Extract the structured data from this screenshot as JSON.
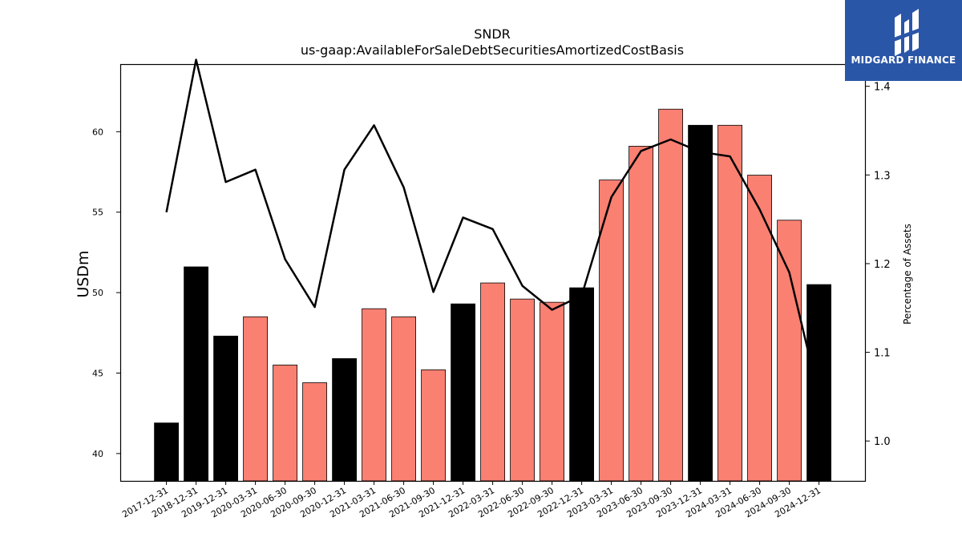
{
  "chart_data": {
    "type": "bar",
    "title": "SNDR",
    "subtitle": "us-gaap:AvailableForSaleDebtSecuritiesAmortizedCostBasis",
    "ylabel": "USDm",
    "y2label": "Percentage of Assets",
    "ylim": [
      38.3,
      64.2
    ],
    "y2lim": [
      0.955,
      1.425
    ],
    "yticks": [
      40,
      45,
      50,
      55,
      60
    ],
    "y2ticks": [
      1.0,
      1.1,
      1.2,
      1.3,
      1.4
    ],
    "grid": false,
    "categories": [
      "2017-12-31",
      "2018-12-31",
      "2019-12-31",
      "2020-03-31",
      "2020-06-30",
      "2020-09-30",
      "2020-12-31",
      "2021-03-31",
      "2021-06-30",
      "2021-09-30",
      "2021-12-31",
      "2022-03-31",
      "2022-06-30",
      "2022-09-30",
      "2022-12-31",
      "2023-03-31",
      "2023-06-30",
      "2023-09-30",
      "2023-12-31",
      "2024-03-31",
      "2024-06-30",
      "2024-09-30",
      "2024-12-31"
    ],
    "series": [
      {
        "type": "bar",
        "values": [
          41.9,
          51.6,
          47.3,
          48.5,
          45.5,
          44.4,
          45.9,
          49.0,
          48.5,
          45.2,
          49.3,
          50.6,
          49.6,
          49.4,
          50.3,
          57.0,
          59.1,
          61.4,
          60.4,
          60.4,
          57.3,
          54.5,
          50.5
        ],
        "bar_colors": [
          "#000000",
          "#000000",
          "#000000",
          "#fa8072",
          "#fa8072",
          "#fa8072",
          "#000000",
          "#fa8072",
          "#fa8072",
          "#fa8072",
          "#000000",
          "#fa8072",
          "#fa8072",
          "#fa8072",
          "#000000",
          "#fa8072",
          "#fa8072",
          "#fa8072",
          "#000000",
          "#fa8072",
          "#fa8072",
          "#fa8072",
          "#000000"
        ]
      },
      {
        "type": "line",
        "axis": "right",
        "color": "#000000",
        "values": [
          1.258,
          1.43,
          1.292,
          1.306,
          1.205,
          1.151,
          1.306,
          1.356,
          1.286,
          1.168,
          1.252,
          1.239,
          1.175,
          1.148,
          1.164,
          1.275,
          1.327,
          1.34,
          1.326,
          1.321,
          1.261,
          1.19,
          1.05
        ]
      }
    ]
  },
  "logo": {
    "text": "MIDGARD FINANCE",
    "bg_color": "#2a56a8"
  }
}
